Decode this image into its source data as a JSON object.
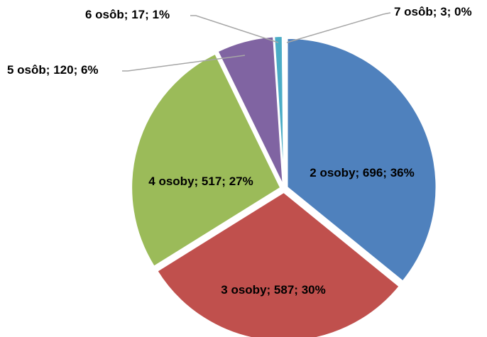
{
  "chart_data": {
    "type": "pie",
    "categories": [
      "2 osoby",
      "3 osoby",
      "4 osoby",
      "5 osôb",
      "6 osôb",
      "7 osôb"
    ],
    "values": [
      696,
      587,
      517,
      120,
      17,
      3
    ],
    "percent_labels": [
      "36%",
      "30%",
      "27%",
      "6%",
      "1%",
      "0%"
    ],
    "separator": "; ",
    "colors": [
      "#4f81bd",
      "#c0504d",
      "#9bbb59",
      "#8064a2",
      "#4bacc6",
      "#f79646"
    ]
  }
}
